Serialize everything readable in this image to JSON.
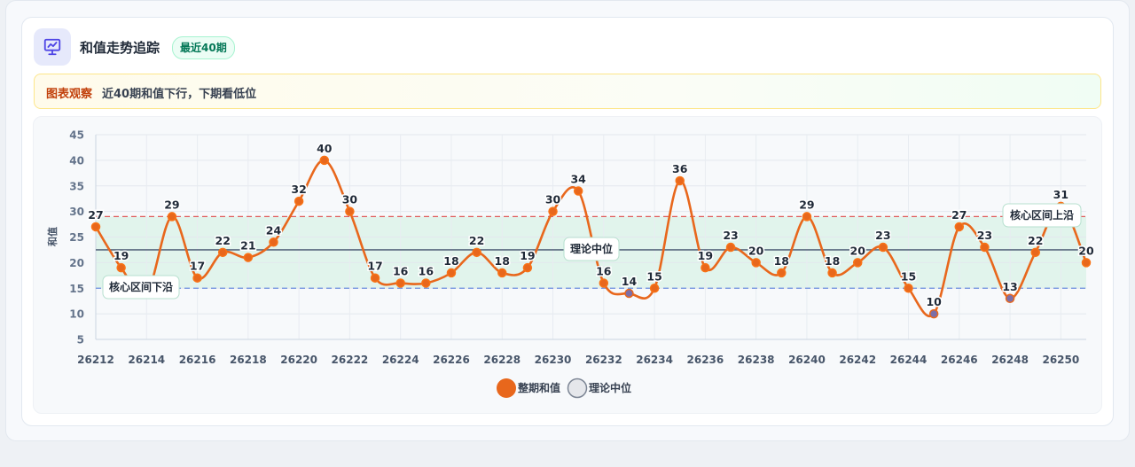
{
  "header": {
    "title": "和值走势追踪",
    "badge": "最近40期",
    "icon": "presentation-chart-icon"
  },
  "observation": {
    "tag": "图表观察",
    "text": "近40期和值下行，下期看低位"
  },
  "colors": {
    "series": "#e8671c",
    "accent": "#4f46e5",
    "band": "#d9f1e7",
    "upper_line": "#e05b5b",
    "lower_line": "#6b8ede",
    "median_line": "#5b6b80"
  },
  "chart_data": {
    "type": "line",
    "title": "",
    "xlabel": "",
    "ylabel": "和值",
    "ylim": [
      5,
      45
    ],
    "yticks": [
      5,
      10,
      15,
      20,
      25,
      30,
      35,
      40,
      45
    ],
    "x": [
      26212,
      26213,
      26214,
      26215,
      26216,
      26217,
      26218,
      26219,
      26220,
      26221,
      26222,
      26223,
      26224,
      26225,
      26226,
      26227,
      26228,
      26229,
      26230,
      26231,
      26232,
      26233,
      26234,
      26235,
      26236,
      26237,
      26238,
      26239,
      26240,
      26241,
      26242,
      26243,
      26244,
      26245,
      26246,
      26247,
      26248,
      26249,
      26250,
      26251
    ],
    "xticks": [
      26212,
      26214,
      26216,
      26218,
      26220,
      26222,
      26224,
      26226,
      26228,
      26230,
      26232,
      26234,
      26236,
      26238,
      26240,
      26242,
      26244,
      26246,
      26248,
      26250
    ],
    "series": [
      {
        "name": "整期和值",
        "values": [
          27,
          19,
          14,
          29,
          17,
          22,
          21,
          24,
          32,
          40,
          30,
          17,
          16,
          16,
          18,
          22,
          18,
          19,
          30,
          34,
          16,
          14,
          15,
          36,
          19,
          23,
          20,
          18,
          29,
          18,
          20,
          23,
          15,
          10,
          27,
          23,
          13,
          22,
          31,
          20
        ]
      }
    ],
    "reference_lines": [
      {
        "name": "理论中位",
        "value": 22.5,
        "label": "理论中位"
      },
      {
        "name": "核心区间上沿",
        "value": 29,
        "label": "核心区间上沿"
      },
      {
        "name": "核心区间下沿",
        "value": 15,
        "label": "核心区间下沿"
      }
    ],
    "band": [
      15,
      29
    ],
    "legend": [
      {
        "name": "整期和值",
        "color": "#e8671c"
      },
      {
        "name": "理论中位",
        "color": "#e5e7eb"
      }
    ],
    "legend_position": "bottom",
    "grid": true
  }
}
